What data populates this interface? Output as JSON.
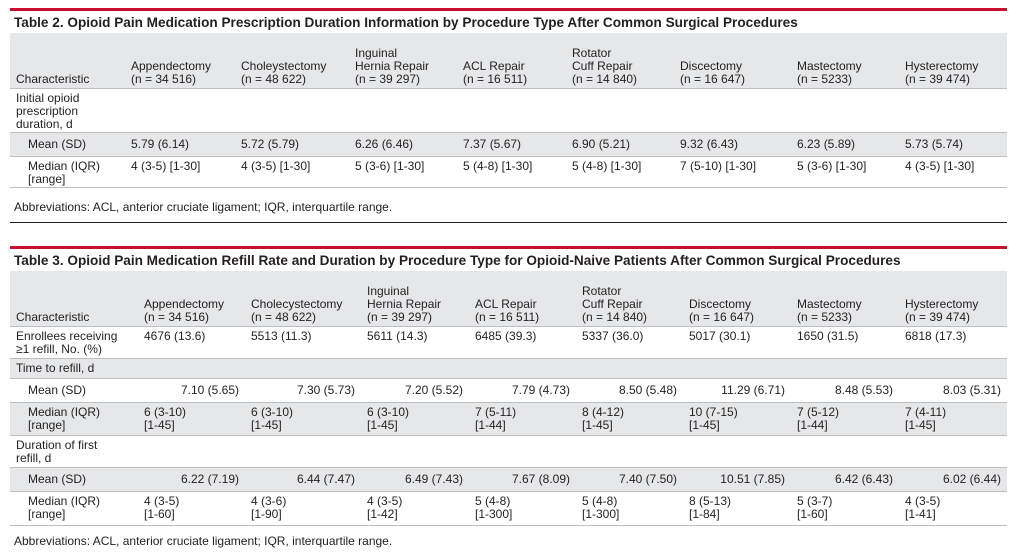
{
  "table2": {
    "title": "Table 2. Opioid Pain Medication Prescription Duration Information by Procedure Type After Common Surgical Procedures",
    "headers": [
      [
        "Characteristic"
      ],
      [
        "Appendectomy",
        "(n = 34 516)"
      ],
      [
        "Choleystectomy",
        "(n = 48 622)"
      ],
      [
        "Inguinal",
        "Hernia Repair",
        "(n = 39 297)"
      ],
      [
        "ACL Repair",
        "(n = 16 511)"
      ],
      [
        "Rotator",
        "Cuff Repair",
        "(n = 14 840)"
      ],
      [
        "Discectomy",
        "(n = 16 647)"
      ],
      [
        "Mastectomy",
        "(n = 5233)"
      ],
      [
        "Hysterectomy",
        "(n = 39 474)"
      ]
    ],
    "section": [
      "Initial opioid",
      "prescription",
      "duration, d"
    ],
    "rows": [
      {
        "label": [
          "Mean (SD)"
        ],
        "cells": [
          "5.79 (6.14)",
          "5.72 (5.79)",
          "6.26 (6.46)",
          "7.37 (5.67)",
          "6.90 (5.21)",
          "9.32 (6.43)",
          "6.23 (5.89)",
          "5.73 (5.74)"
        ]
      },
      {
        "label": [
          "Median (IQR)",
          "[range]"
        ],
        "cells": [
          "4 (3-5) [1-30]",
          "4 (3-5) [1-30]",
          "5 (3-6) [1-30]",
          "5 (4-8) [1-30]",
          "5 (4-8) [1-30]",
          "7 (5-10) [1-30]",
          "5 (3-6) [1-30]",
          "4 (3-5) [1-30]"
        ]
      }
    ],
    "footnote": "Abbreviations: ACL, anterior cruciate ligament; IQR, interquartile range."
  },
  "table3": {
    "title": "Table 3. Opioid Pain Medication Refill Rate and Duration by Procedure Type for Opioid-Naive Patients After Common Surgical Procedures",
    "headers": [
      [
        "Characteristic"
      ],
      [
        "Appendectomy",
        "(n = 34 516)"
      ],
      [
        "Cholecystectomy",
        "(n = 48 622)"
      ],
      [
        "Inguinal",
        "Hernia Repair",
        "(n = 39 297)"
      ],
      [
        "ACL Repair",
        "(n = 16 511)"
      ],
      [
        "Rotator",
        "Cuff Repair",
        "(n = 14 840)"
      ],
      [
        "Discectomy",
        "(n = 16 647)"
      ],
      [
        "Mastectomy",
        "(n = 5233)"
      ],
      [
        "Hysterectomy",
        "(n = 39 474)"
      ]
    ],
    "enrollees": {
      "label": [
        "Enrollees receiving",
        "≥1 refill, No. (%)"
      ],
      "cells": [
        "4676 (13.6)",
        "5513 (11.3)",
        "5611 (14.3)",
        "6485 (39.3)",
        "5337 (36.0)",
        "5017 (30.1)",
        "1650 (31.5)",
        "6818 (17.3)"
      ]
    },
    "time_section": [
      "Time to refill, d"
    ],
    "time_mean": {
      "label": [
        "Mean (SD)"
      ],
      "cells": [
        "7.10 (5.65)",
        "7.30 (5.73)",
        "7.20 (5.52)",
        "7.79 (4.73)",
        "8.50 (5.48)",
        "11.29 (6.71)",
        "8.48 (5.53)",
        "8.03 (5.31)"
      ]
    },
    "time_median": {
      "label": [
        "Median (IQR)",
        "[range]"
      ],
      "cells": [
        [
          "6 (3-10)",
          "[1-45]"
        ],
        [
          "6 (3-10)",
          "[1-45]"
        ],
        [
          "6 (3-10)",
          "[1-45]"
        ],
        [
          "7 (5-11)",
          "[1-44]"
        ],
        [
          "8 (4-12)",
          "[1-45]"
        ],
        [
          "10 (7-15)",
          "[1-45]"
        ],
        [
          "7 (5-12)",
          "[1-44]"
        ],
        [
          "7 (4-11)",
          "[1-45]"
        ]
      ]
    },
    "dur_section": [
      "Duration of first",
      "refill, d"
    ],
    "dur_mean": {
      "label": [
        "Mean (SD)"
      ],
      "cells": [
        "6.22 (7.19)",
        "6.44 (7.47)",
        "6.49 (7.43)",
        "7.67 (8.09)",
        "7.40 (7.50)",
        "10.51 (7.85)",
        "6.42 (6.43)",
        "6.02 (6.44)"
      ]
    },
    "dur_median": {
      "label": [
        "Median (IQR)",
        "[range]"
      ],
      "cells": [
        [
          "4 (3-5)",
          "[1-60]"
        ],
        [
          "4 (3-6)",
          "[1-90]"
        ],
        [
          "4 (3-5)",
          "[1-42]"
        ],
        [
          "5 (4-8)",
          "[1-300]"
        ],
        [
          "5 (4-8)",
          "[1-300]"
        ],
        [
          "8 (5-13)",
          "[1-84]"
        ],
        [
          "5 (3-7)",
          "[1-60]"
        ],
        [
          "4 (3-5)",
          "[1-41]"
        ]
      ]
    },
    "footnote": "Abbreviations: ACL, anterior cruciate ligament; IQR, interquartile range."
  },
  "colors": {
    "rule": "#c8102e",
    "shade": "#e6e7e8",
    "border": "#bcbec0"
  }
}
